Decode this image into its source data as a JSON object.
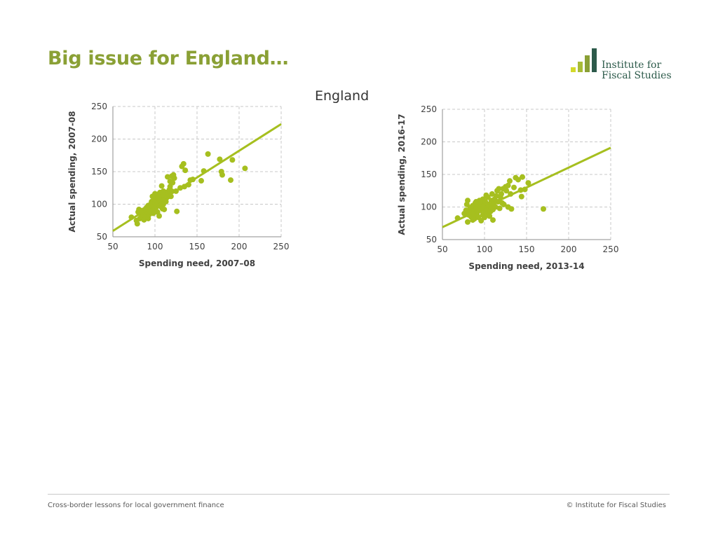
{
  "slide": {
    "title": "Big issue for England…",
    "heading": "England"
  },
  "logo": {
    "line1": "Institute for",
    "line2": "Fiscal Studies",
    "bar_colors": [
      "#d3d92b",
      "#a8bc36",
      "#8aa035",
      "#2c5a4a"
    ],
    "bar_levels": [
      0.22,
      0.44,
      0.7,
      1.0
    ]
  },
  "footer": {
    "left": "Cross-border lessons for local government finance",
    "right": "© Institute for Fiscal Studies"
  },
  "colors": {
    "accent": "#8aa035",
    "point": "#a6bf1f",
    "trend": "#a6bf1f",
    "grid": "#c8c8c8",
    "text": "#404040"
  },
  "chart_data": [
    {
      "type": "scatter",
      "xlabel": "Spending need, 2007–08",
      "ylabel": "Actual spending, 2007-08",
      "xlim": [
        50,
        250
      ],
      "ylim": [
        50,
        250
      ],
      "xticks": [
        50,
        100,
        150,
        200,
        250
      ],
      "yticks": [
        50,
        100,
        150,
        200,
        250
      ],
      "grid": true,
      "trendline": [
        [
          50,
          59
        ],
        [
          250,
          223
        ]
      ],
      "points": [
        [
          72,
          80
        ],
        [
          78,
          75
        ],
        [
          79,
          70
        ],
        [
          80,
          88
        ],
        [
          81,
          92
        ],
        [
          82,
          78
        ],
        [
          83,
          85
        ],
        [
          84,
          80
        ],
        [
          85,
          90
        ],
        [
          86,
          82
        ],
        [
          87,
          76
        ],
        [
          88,
          92
        ],
        [
          89,
          86
        ],
        [
          90,
          95
        ],
        [
          90,
          80
        ],
        [
          91,
          88
        ],
        [
          92,
          98
        ],
        [
          93,
          84
        ],
        [
          94,
          92
        ],
        [
          95,
          100
        ],
        [
          95,
          88
        ],
        [
          96,
          104
        ],
        [
          97,
          94
        ],
        [
          98,
          97
        ],
        [
          98,
          86
        ],
        [
          99,
          108
        ],
        [
          100,
          100
        ],
        [
          100,
          92
        ],
        [
          101,
          112
        ],
        [
          102,
          96
        ],
        [
          102,
          104
        ],
        [
          103,
          115
        ],
        [
          103,
          88
        ],
        [
          104,
          100
        ],
        [
          105,
          108
        ],
        [
          105,
          82
        ],
        [
          106,
          118
        ],
        [
          107,
          98
        ],
        [
          107,
          110
        ],
        [
          108,
          104
        ],
        [
          108,
          95
        ],
        [
          109,
          113
        ],
        [
          110,
          120
        ],
        [
          110,
          100
        ],
        [
          111,
          108
        ],
        [
          111,
          92
        ],
        [
          112,
          115
        ],
        [
          113,
          104
        ],
        [
          113,
          118
        ],
        [
          114,
          110
        ],
        [
          115,
          118
        ],
        [
          115,
          142
        ],
        [
          116,
          112
        ],
        [
          117,
          122
        ],
        [
          118,
          127
        ],
        [
          118,
          135
        ],
        [
          119,
          112
        ],
        [
          120,
          143
        ],
        [
          120,
          120
        ],
        [
          121,
          133
        ],
        [
          122,
          145
        ],
        [
          123,
          140
        ],
        [
          125,
          120
        ],
        [
          126,
          89
        ],
        [
          130,
          125
        ],
        [
          132,
          158
        ],
        [
          134,
          162
        ],
        [
          135,
          127
        ],
        [
          136,
          152
        ],
        [
          140,
          130
        ],
        [
          142,
          137
        ],
        [
          145,
          138
        ],
        [
          155,
          136
        ],
        [
          158,
          151
        ],
        [
          163,
          177
        ],
        [
          177,
          169
        ],
        [
          179,
          150
        ],
        [
          180,
          145
        ],
        [
          190,
          137
        ],
        [
          192,
          168
        ],
        [
          207,
          155
        ],
        [
          100,
          116
        ],
        [
          104,
          102
        ],
        [
          106,
          107
        ],
        [
          108,
          128
        ],
        [
          109,
          93
        ],
        [
          97,
          112
        ],
        [
          94,
          90
        ],
        [
          92,
          78
        ]
      ]
    },
    {
      "type": "scatter",
      "xlabel": "Spending need, 2013-14",
      "ylabel": "Actual spending, 2016-17",
      "xlim": [
        50,
        250
      ],
      "ylim": [
        50,
        250
      ],
      "xticks": [
        50,
        100,
        150,
        200,
        250
      ],
      "yticks": [
        50,
        100,
        150,
        200,
        250
      ],
      "grid": true,
      "trendline": [
        [
          50,
          69
        ],
        [
          250,
          191
        ]
      ],
      "points": [
        [
          68,
          83
        ],
        [
          76,
          90
        ],
        [
          78,
          95
        ],
        [
          79,
          104
        ],
        [
          80,
          110
        ],
        [
          80,
          77
        ],
        [
          81,
          88
        ],
        [
          82,
          92
        ],
        [
          83,
          99
        ],
        [
          84,
          85
        ],
        [
          85,
          96
        ],
        [
          86,
          102
        ],
        [
          87,
          90
        ],
        [
          88,
          95
        ],
        [
          88,
          82
        ],
        [
          89,
          106
        ],
        [
          90,
          98
        ],
        [
          91,
          88
        ],
        [
          92,
          93
        ],
        [
          93,
          103
        ],
        [
          93,
          84
        ],
        [
          94,
          110
        ],
        [
          95,
          95
        ],
        [
          96,
          100
        ],
        [
          96,
          79
        ],
        [
          97,
          105
        ],
        [
          98,
          88
        ],
        [
          98,
          112
        ],
        [
          99,
          96
        ],
        [
          100,
          100
        ],
        [
          100,
          84
        ],
        [
          101,
          108
        ],
        [
          102,
          92
        ],
        [
          103,
          97
        ],
        [
          104,
          104
        ],
        [
          104,
          115
        ],
        [
          105,
          88
        ],
        [
          106,
          102
        ],
        [
          107,
          93
        ],
        [
          108,
          110
        ],
        [
          108,
          100
        ],
        [
          109,
          120
        ],
        [
          110,
          96
        ],
        [
          110,
          80
        ],
        [
          111,
          106
        ],
        [
          112,
          112
        ],
        [
          113,
          100
        ],
        [
          114,
          117
        ],
        [
          115,
          125
        ],
        [
          116,
          108
        ],
        [
          117,
          128
        ],
        [
          118,
          98
        ],
        [
          119,
          115
        ],
        [
          120,
          120
        ],
        [
          121,
          106
        ],
        [
          122,
          128
        ],
        [
          123,
          104
        ],
        [
          125,
          131
        ],
        [
          126,
          125
        ],
        [
          128,
          133
        ],
        [
          128,
          100
        ],
        [
          130,
          140
        ],
        [
          131,
          120
        ],
        [
          132,
          97
        ],
        [
          135,
          130
        ],
        [
          137,
          145
        ],
        [
          140,
          142
        ],
        [
          143,
          126
        ],
        [
          144,
          116
        ],
        [
          145,
          146
        ],
        [
          148,
          127
        ],
        [
          152,
          137
        ],
        [
          170,
          97
        ],
        [
          95,
          108
        ],
        [
          102,
          118
        ],
        [
          106,
          86
        ],
        [
          90,
          108
        ],
        [
          86,
          80
        ]
      ]
    }
  ]
}
